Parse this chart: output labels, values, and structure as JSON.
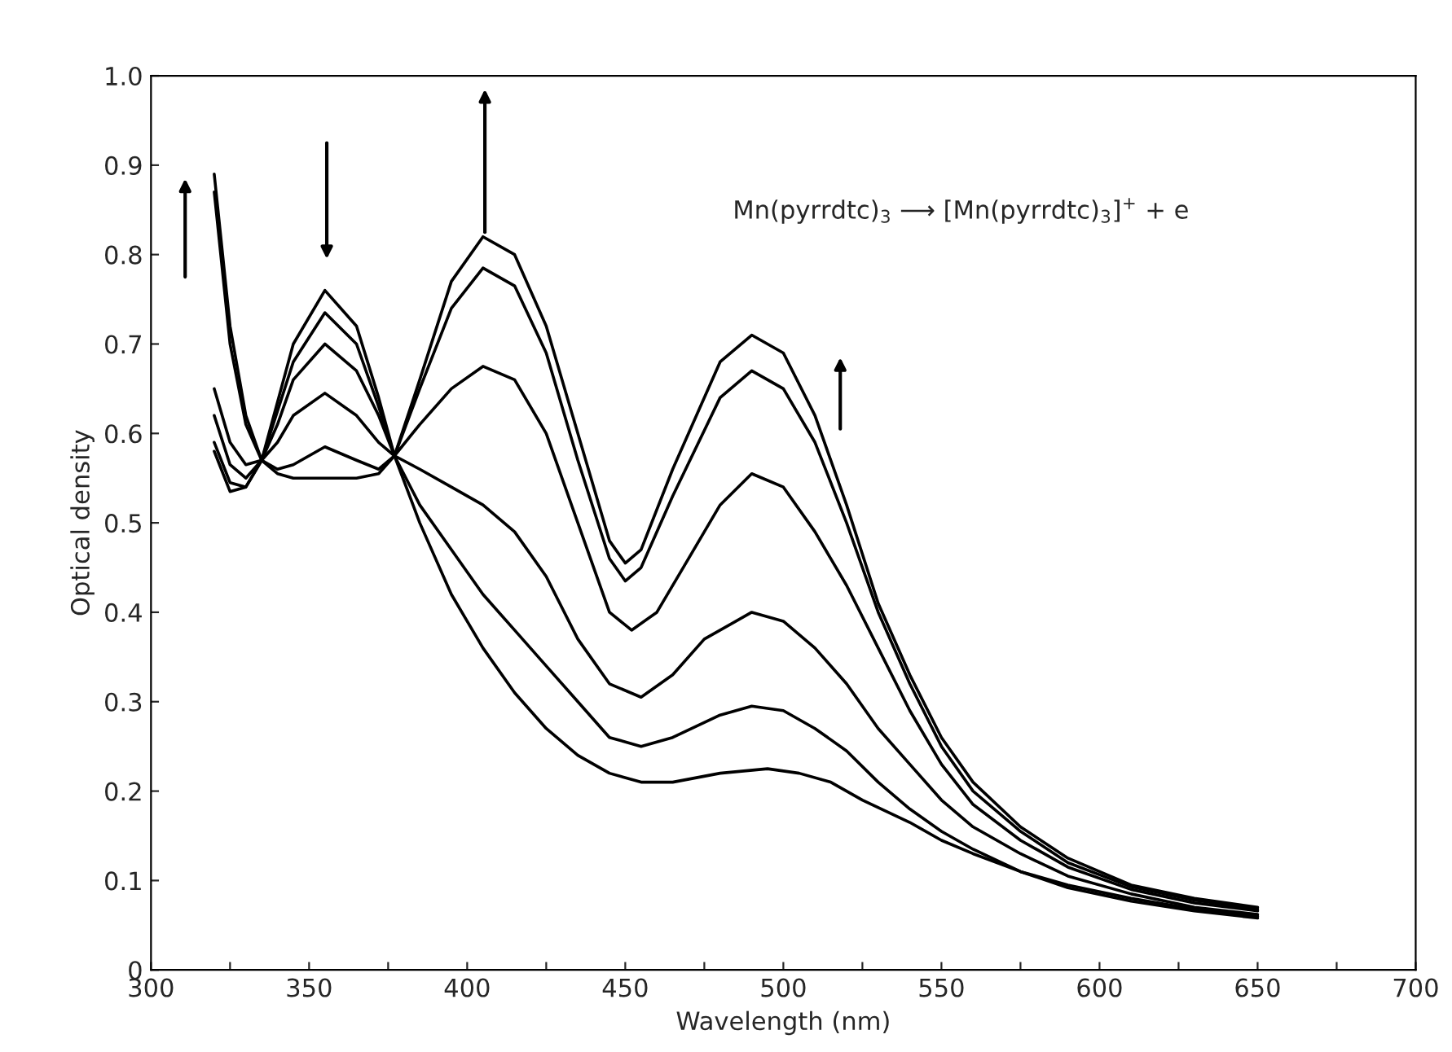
{
  "chart_data": {
    "type": "line",
    "xlabel": "Wavelength (nm)",
    "ylabel": "Optical density",
    "annotations": [
      "Mn(pyrrdtc)$_{3}$ ⟶ [Mn(pyrrdtc)$_{3}$]$^{+}$ + e"
    ],
    "xlim": [
      300,
      700
    ],
    "xticks": [
      300,
      {
        "value": 325,
        "label": null
      },
      350,
      {
        "value": 375,
        "label": null
      },
      400,
      {
        "value": 425,
        "label": null
      },
      450,
      {
        "value": 475,
        "label": null
      },
      500,
      {
        "value": 525,
        "label": null
      },
      550,
      {
        "value": 575,
        "label": null
      },
      600,
      {
        "value": 625,
        "label": null
      },
      650,
      {
        "value": 675,
        "label": null
      },
      700
    ],
    "ylim": [
      0,
      1.0
    ],
    "yticks": [
      {
        "value": 0,
        "label": "0"
      },
      0.1,
      0.2,
      0.3,
      0.4,
      0.5,
      0.6,
      0.7,
      0.8,
      0.9,
      {
        "value": 1.0,
        "label": "1.0"
      }
    ],
    "grid": false,
    "legend": false,
    "marker": "none",
    "line_style": "solid",
    "series": [
      {
        "color": "#000000",
        "x": [
          320,
          325,
          330,
          335,
          340,
          345,
          355,
          365,
          372,
          377,
          385,
          395,
          405,
          415,
          425,
          435,
          445,
          450,
          455,
          465,
          480,
          490,
          500,
          510,
          520,
          530,
          540,
          550,
          560,
          575,
          590,
          610,
          630,
          650
        ],
        "values": [
          0.89,
          0.72,
          0.62,
          0.57,
          0.555,
          0.55,
          0.55,
          0.55,
          0.555,
          0.575,
          0.66,
          0.77,
          0.82,
          0.8,
          0.72,
          0.6,
          0.48,
          0.455,
          0.47,
          0.56,
          0.68,
          0.71,
          0.69,
          0.62,
          0.52,
          0.41,
          0.33,
          0.26,
          0.21,
          0.16,
          0.125,
          0.095,
          0.08,
          0.07
        ]
      },
      {
        "color": "#000000",
        "x": [
          320,
          325,
          330,
          335,
          340,
          345,
          355,
          365,
          372,
          377,
          385,
          395,
          405,
          415,
          425,
          435,
          445,
          450,
          455,
          465,
          480,
          490,
          500,
          510,
          520,
          530,
          540,
          550,
          560,
          575,
          590,
          610,
          630,
          650
        ],
        "values": [
          0.87,
          0.7,
          0.61,
          0.57,
          0.56,
          0.565,
          0.585,
          0.57,
          0.56,
          0.575,
          0.65,
          0.74,
          0.785,
          0.765,
          0.69,
          0.57,
          0.46,
          0.435,
          0.45,
          0.53,
          0.64,
          0.67,
          0.65,
          0.59,
          0.5,
          0.4,
          0.32,
          0.25,
          0.2,
          0.155,
          0.12,
          0.093,
          0.078,
          0.068
        ]
      },
      {
        "color": "#000000",
        "x": [
          320,
          325,
          330,
          335,
          340,
          345,
          355,
          365,
          372,
          377,
          385,
          395,
          405,
          415,
          425,
          435,
          445,
          452,
          460,
          470,
          480,
          490,
          500,
          510,
          520,
          530,
          540,
          550,
          560,
          575,
          590,
          610,
          630,
          650
        ],
        "values": [
          0.65,
          0.59,
          0.565,
          0.57,
          0.59,
          0.62,
          0.645,
          0.62,
          0.59,
          0.575,
          0.61,
          0.65,
          0.675,
          0.66,
          0.6,
          0.5,
          0.4,
          0.38,
          0.4,
          0.46,
          0.52,
          0.555,
          0.54,
          0.49,
          0.43,
          0.36,
          0.29,
          0.23,
          0.185,
          0.145,
          0.115,
          0.09,
          0.075,
          0.066
        ]
      },
      {
        "color": "#000000",
        "x": [
          320,
          325,
          330,
          335,
          340,
          345,
          355,
          365,
          372,
          377,
          385,
          395,
          405,
          415,
          425,
          435,
          445,
          455,
          465,
          475,
          490,
          500,
          510,
          520,
          530,
          540,
          550,
          560,
          575,
          590,
          610,
          630,
          650
        ],
        "values": [
          0.62,
          0.565,
          0.55,
          0.57,
          0.61,
          0.66,
          0.7,
          0.67,
          0.62,
          0.575,
          0.56,
          0.54,
          0.52,
          0.49,
          0.44,
          0.37,
          0.32,
          0.305,
          0.33,
          0.37,
          0.4,
          0.39,
          0.36,
          0.32,
          0.27,
          0.23,
          0.19,
          0.16,
          0.13,
          0.105,
          0.085,
          0.07,
          0.062
        ]
      },
      {
        "color": "#000000",
        "x": [
          320,
          325,
          330,
          335,
          340,
          345,
          355,
          365,
          372,
          377,
          385,
          395,
          405,
          415,
          425,
          435,
          445,
          455,
          465,
          480,
          490,
          500,
          510,
          520,
          530,
          540,
          550,
          560,
          575,
          590,
          610,
          630,
          650
        ],
        "values": [
          0.59,
          0.545,
          0.54,
          0.57,
          0.625,
          0.68,
          0.735,
          0.7,
          0.63,
          0.575,
          0.52,
          0.47,
          0.42,
          0.38,
          0.34,
          0.3,
          0.26,
          0.25,
          0.26,
          0.285,
          0.295,
          0.29,
          0.27,
          0.245,
          0.21,
          0.18,
          0.155,
          0.135,
          0.11,
          0.095,
          0.08,
          0.068,
          0.06
        ]
      },
      {
        "color": "#000000",
        "x": [
          320,
          325,
          330,
          335,
          340,
          345,
          355,
          365,
          372,
          377,
          385,
          395,
          405,
          415,
          425,
          435,
          445,
          455,
          465,
          480,
          495,
          505,
          515,
          525,
          540,
          550,
          560,
          575,
          590,
          610,
          630,
          650
        ],
        "values": [
          0.58,
          0.535,
          0.54,
          0.57,
          0.635,
          0.7,
          0.76,
          0.72,
          0.64,
          0.575,
          0.5,
          0.42,
          0.36,
          0.31,
          0.27,
          0.24,
          0.22,
          0.21,
          0.21,
          0.22,
          0.225,
          0.22,
          0.21,
          0.19,
          0.165,
          0.145,
          0.13,
          0.11,
          0.092,
          0.077,
          0.066,
          0.058
        ]
      }
    ]
  }
}
